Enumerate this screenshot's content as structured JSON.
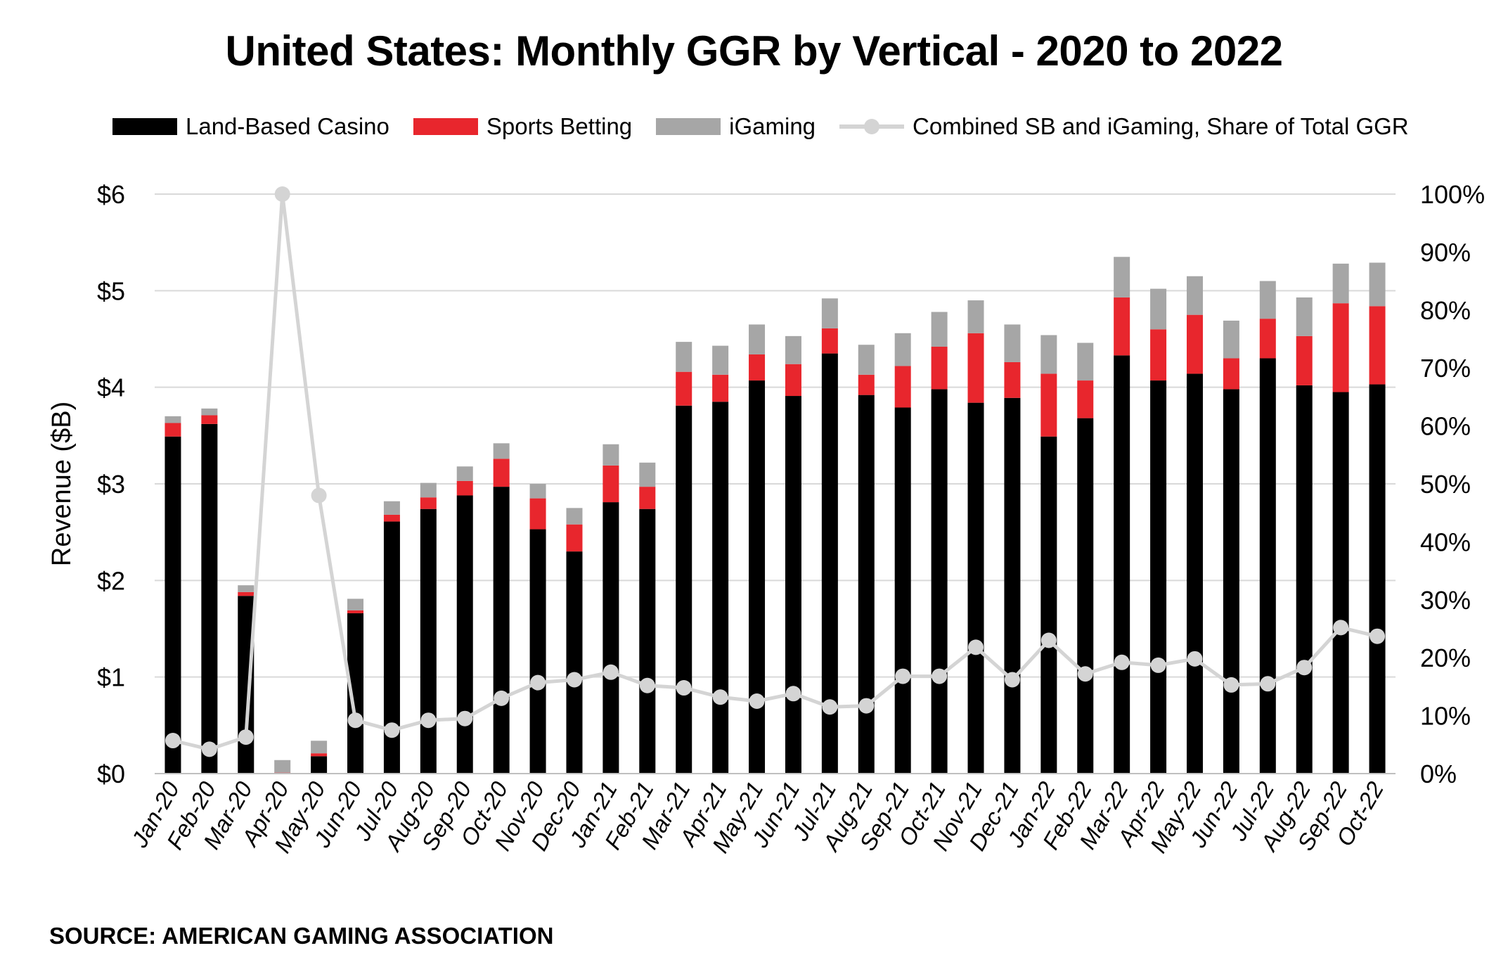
{
  "title": "United States: Monthly GGR by Vertical - 2020 to 2022",
  "source": "SOURCE: AMERICAN GAMING ASSOCIATION",
  "colors": {
    "land": "#000000",
    "sports": "#e8262d",
    "igaming": "#a6a6a6",
    "share": "#d4d4d4",
    "grid": "#d9d9d9"
  },
  "chart_data": {
    "type": "bar",
    "stacked": true,
    "title": "United States: Monthly GGR by Vertical - 2020 to 2022",
    "ylabel": "Revenue ($B)",
    "ylim": [
      0,
      6
    ],
    "y_ticks": [
      "$0",
      "$1",
      "$2",
      "$3",
      "$4",
      "$5",
      "$6"
    ],
    "y2lim": [
      0,
      100
    ],
    "y2_ticks": [
      "0%",
      "10%",
      "20%",
      "30%",
      "40%",
      "50%",
      "60%",
      "70%",
      "80%",
      "90%",
      "100%"
    ],
    "grid": true,
    "legend_position": "top",
    "categories": [
      "Jan-20",
      "Feb-20",
      "Mar-20",
      "Apr-20",
      "May-20",
      "Jun-20",
      "Jul-20",
      "Aug-20",
      "Sep-20",
      "Oct-20",
      "Nov-20",
      "Dec-20",
      "Jan-21",
      "Feb-21",
      "Mar-21",
      "Apr-21",
      "May-21",
      "Jun-21",
      "Jul-21",
      "Aug-21",
      "Sep-21",
      "Oct-21",
      "Nov-21",
      "Dec-21",
      "Jan-22",
      "Feb-22",
      "Mar-22",
      "Apr-22",
      "May-22",
      "Jun-22",
      "Jul-22",
      "Aug-22",
      "Sep-22",
      "Oct-22"
    ],
    "series": [
      {
        "name": "Land-Based Casino",
        "type": "bar",
        "values": [
          3.49,
          3.62,
          1.84,
          0.0,
          0.18,
          1.66,
          2.61,
          2.74,
          2.88,
          2.97,
          2.53,
          2.3,
          2.81,
          2.74,
          3.81,
          3.85,
          4.07,
          3.91,
          4.35,
          3.92,
          3.79,
          3.98,
          3.84,
          3.89,
          3.49,
          3.68,
          4.33,
          4.07,
          4.14,
          3.98,
          4.3,
          4.02,
          3.95,
          4.03
        ]
      },
      {
        "name": "Sports Betting",
        "type": "bar",
        "values": [
          0.14,
          0.09,
          0.04,
          0.01,
          0.03,
          0.03,
          0.07,
          0.12,
          0.15,
          0.29,
          0.32,
          0.28,
          0.38,
          0.23,
          0.35,
          0.28,
          0.27,
          0.33,
          0.26,
          0.21,
          0.43,
          0.44,
          0.72,
          0.37,
          0.65,
          0.39,
          0.6,
          0.53,
          0.61,
          0.32,
          0.41,
          0.51,
          0.92,
          0.81
        ]
      },
      {
        "name": "iGaming",
        "type": "bar",
        "values": [
          0.07,
          0.07,
          0.07,
          0.13,
          0.13,
          0.12,
          0.14,
          0.15,
          0.15,
          0.16,
          0.15,
          0.17,
          0.22,
          0.25,
          0.31,
          0.3,
          0.31,
          0.29,
          0.31,
          0.31,
          0.34,
          0.36,
          0.34,
          0.39,
          0.4,
          0.39,
          0.42,
          0.42,
          0.4,
          0.39,
          0.39,
          0.4,
          0.41,
          0.45
        ]
      },
      {
        "name": "Combined SB and iGaming, Share of Total GGR",
        "type": "line",
        "axis": "right",
        "values": [
          5.7,
          4.2,
          6.3,
          100,
          48,
          9.2,
          7.5,
          9.2,
          9.5,
          13.0,
          15.7,
          16.2,
          17.5,
          15.2,
          14.8,
          13.2,
          12.5,
          13.8,
          11.5,
          11.7,
          16.8,
          16.8,
          21.8,
          16.2,
          23.0,
          17.2,
          19.2,
          18.7,
          19.8,
          15.3,
          15.5,
          18.3,
          25.2,
          23.7
        ]
      }
    ]
  }
}
